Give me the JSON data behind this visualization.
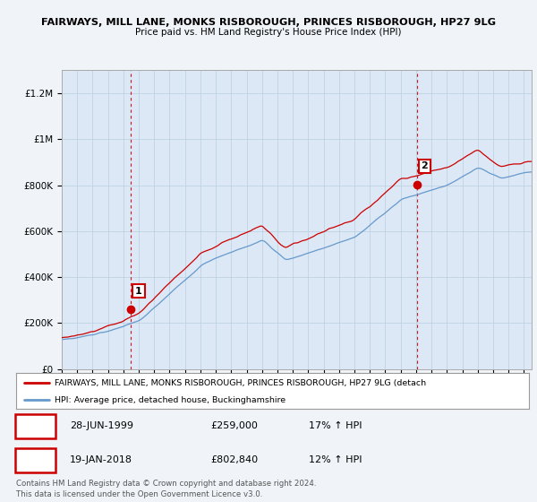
{
  "title_line1": "FAIRWAYS, MILL LANE, MONKS RISBOROUGH, PRINCES RISBOROUGH, HP27 9LG",
  "title_line2": "Price paid vs. HM Land Registry's House Price Index (HPI)",
  "ylim": [
    0,
    1300000
  ],
  "yticks": [
    0,
    200000,
    400000,
    600000,
    800000,
    1000000,
    1200000
  ],
  "ytick_labels": [
    "£0",
    "£200K",
    "£400K",
    "£600K",
    "£800K",
    "£1M",
    "£1.2M"
  ],
  "background_color": "#f0f4f8",
  "plot_bg_color": "#dce8f5",
  "grid_color": "#b8cfe0",
  "hpi_color": "#6699cc",
  "price_color": "#cc0000",
  "marker_color": "#cc0000",
  "sale1_x": 1999.49,
  "sale1_price": 259000,
  "sale2_x": 2018.05,
  "sale2_price": 802840,
  "vline_color": "#cc0000",
  "legend_label1": "FAIRWAYS, MILL LANE, MONKS RISBOROUGH, PRINCES RISBOROUGH, HP27 9LG (detach",
  "legend_label2": "HPI: Average price, detached house, Buckinghamshire",
  "annotation1_date": "28-JUN-1999",
  "annotation1_price": "£259,000",
  "annotation1_hpi": "17% ↑ HPI",
  "annotation2_date": "19-JAN-2018",
  "annotation2_price": "£802,840",
  "annotation2_hpi": "12% ↑ HPI",
  "footer": "Contains HM Land Registry data © Crown copyright and database right 2024.\nThis data is licensed under the Open Government Licence v3.0.",
  "xstart": 1995.0,
  "xend": 2025.5,
  "fig_width": 6.0,
  "fig_height": 5.6,
  "dpi": 100
}
